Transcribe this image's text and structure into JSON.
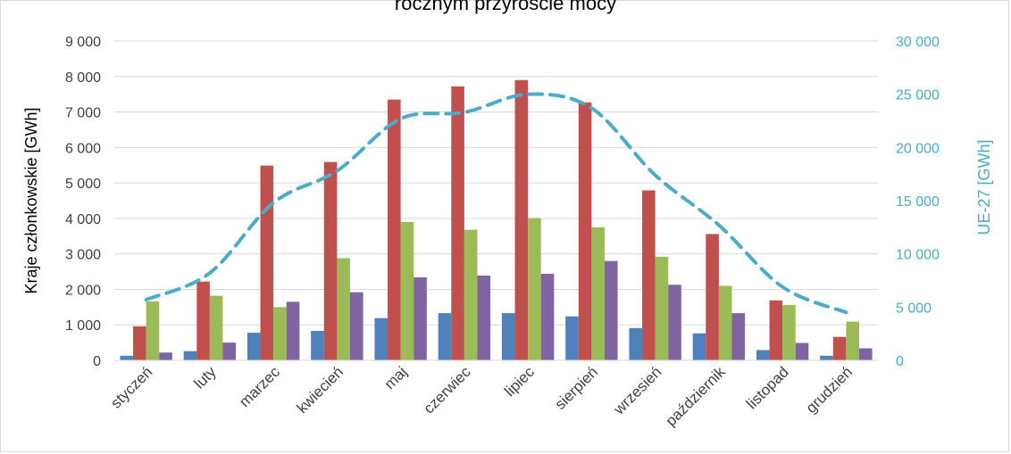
{
  "chart_data": {
    "type": "bar",
    "title": "rocznym przyroście mocy",
    "categories": [
      "styczeń",
      "luty",
      "marzec",
      "kwiecień",
      "maj",
      "czerwiec",
      "lipiec",
      "sierpień",
      "wrzesień",
      "październik",
      "listopad",
      "grudzień"
    ],
    "series": [
      {
        "type": "bar",
        "axis": "left",
        "color": "#4f81bd",
        "values": [
          130,
          260,
          780,
          830,
          1190,
          1330,
          1330,
          1240,
          910,
          760,
          290,
          130
        ]
      },
      {
        "type": "bar",
        "axis": "left",
        "color": "#c0504d",
        "values": [
          960,
          2220,
          5490,
          5590,
          7350,
          7720,
          7900,
          7270,
          4790,
          3560,
          1690,
          660
        ]
      },
      {
        "type": "bar",
        "axis": "left",
        "color": "#9bbb59",
        "values": [
          1660,
          1820,
          1500,
          2880,
          3900,
          3680,
          4010,
          3750,
          2920,
          2100,
          1560,
          1090
        ]
      },
      {
        "type": "bar",
        "axis": "left",
        "color": "#8064a2",
        "values": [
          220,
          500,
          1650,
          1920,
          2340,
          2390,
          2440,
          2800,
          2130,
          1330,
          490,
          340
        ]
      },
      {
        "type": "line",
        "axis": "right",
        "style": "dashed",
        "color": "#4bacc6",
        "values": [
          5700,
          8200,
          14800,
          17800,
          22700,
          23300,
          25000,
          23700,
          17400,
          12700,
          6900,
          4500
        ]
      }
    ],
    "ylabel": "Kraje członkowskie [GWh]",
    "y2label": "UE-27 [GWh]",
    "ylim": [
      0,
      9000
    ],
    "y2lim": [
      0,
      30000
    ],
    "yticks": [
      0,
      1000,
      2000,
      3000,
      4000,
      5000,
      6000,
      7000,
      8000,
      9000
    ],
    "ytick_labels": [
      "0",
      "1 000",
      "2 000",
      "3 000",
      "4 000",
      "5 000",
      "6 000",
      "7 000",
      "8 000",
      "9 000"
    ],
    "y2ticks": [
      0,
      5000,
      10000,
      15000,
      20000,
      25000,
      30000
    ],
    "y2tick_labels": [
      "0",
      "5 000",
      "10 000",
      "15 000",
      "20 000",
      "25 000",
      "30 000"
    ],
    "grid": true,
    "colors": {
      "grid": "#d9d9d9",
      "text": "#404040",
      "right_axis": "#4bacc6"
    }
  }
}
